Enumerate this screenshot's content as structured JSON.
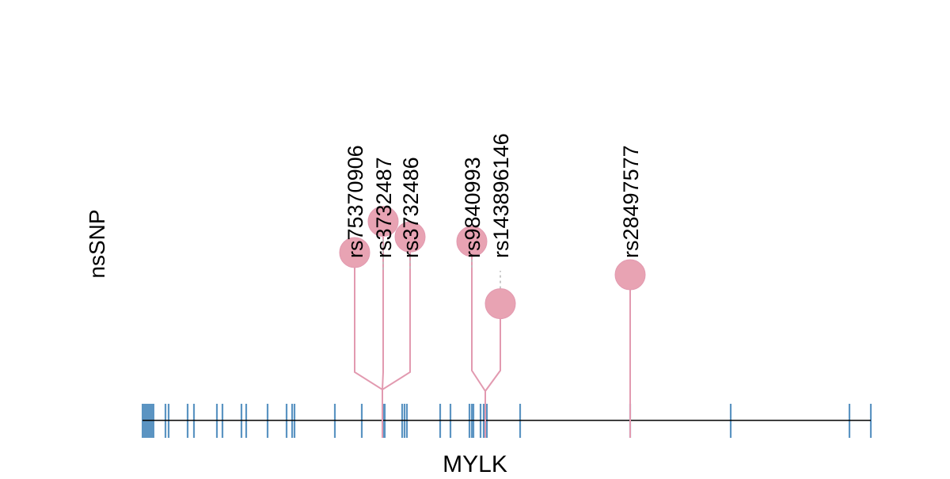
{
  "track_label": "nsSNP",
  "gene_name": "MYLK",
  "colors": {
    "exon": "#5b94c2",
    "lollipop": "#e8a3b3",
    "lollipop_stem": "#e29ab0",
    "leader": "#bbbbbb",
    "backbone": "#000000",
    "text": "#000000"
  },
  "chart_data": {
    "type": "lollipop",
    "gene": "MYLK",
    "snps": [
      {
        "id": "rs75370906",
        "height": 0.68
      },
      {
        "id": "rs3732487",
        "height": 0.82
      },
      {
        "id": "rs3732486",
        "height": 0.75
      },
      {
        "id": "rs9840993",
        "height": 0.73
      },
      {
        "id": "rs143896146",
        "height": 0.45
      },
      {
        "id": "rs28497577",
        "height": 0.58
      }
    ]
  }
}
